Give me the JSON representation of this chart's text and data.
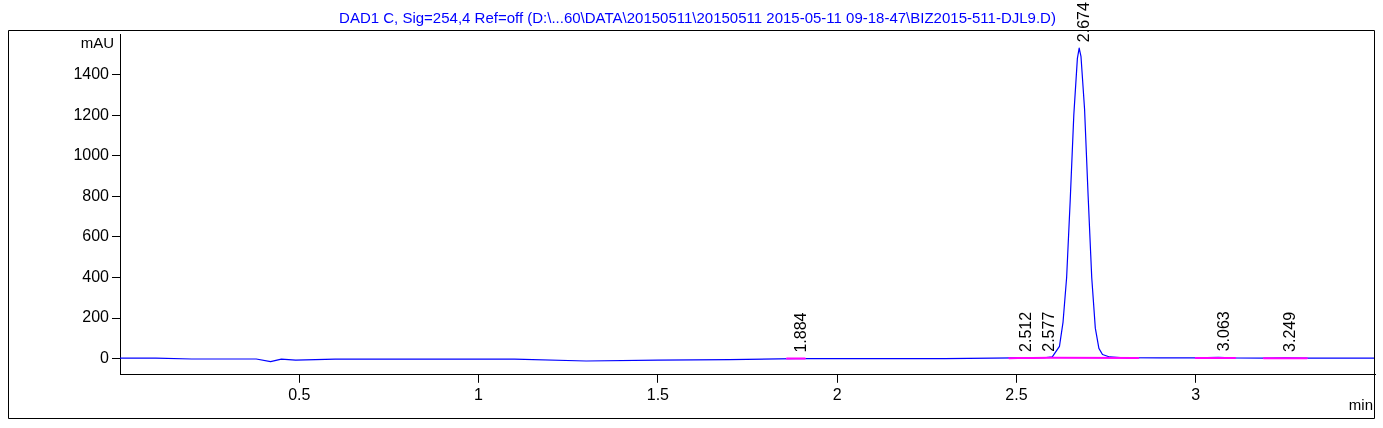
{
  "chart_data": {
    "type": "line",
    "title": "DAD1 C, Sig=254,4 Ref=off (D:\\...60\\DATA\\20150511\\20150511 2015-05-11 09-18-47\\BIZ2015-511-DJL9.D)",
    "xlabel": "min",
    "ylabel": "mAU",
    "xlim": [
      0,
      3.5
    ],
    "ylim": [
      -80,
      1600
    ],
    "xticks": [
      0.5,
      1,
      1.5,
      2,
      2.5,
      3
    ],
    "yticks": [
      0,
      200,
      400,
      600,
      800,
      1000,
      1200,
      1400
    ],
    "grid": false,
    "legend": false,
    "marker": "none",
    "line_style": "solid",
    "series": [
      {
        "color": "#0000ff",
        "x": [
          0,
          0.1,
          0.2,
          0.3,
          0.38,
          0.42,
          0.45,
          0.49,
          0.6,
          0.8,
          1.0,
          1.1,
          1.3,
          1.5,
          1.7,
          1.884,
          2.0,
          2.3,
          2.5,
          2.577,
          2.6,
          2.62,
          2.63,
          2.64,
          2.65,
          2.66,
          2.67,
          2.675,
          2.68,
          2.69,
          2.7,
          2.71,
          2.72,
          2.73,
          2.74,
          2.76,
          2.8,
          2.9,
          3.0,
          3.063,
          3.1,
          3.2,
          3.249,
          3.3,
          3.5
        ],
        "values": [
          2,
          2,
          -2,
          -2,
          -2,
          -15,
          -3,
          -8,
          -3,
          -3,
          -3,
          -3,
          -12,
          -8,
          -5,
          0,
          0,
          0,
          3,
          4,
          8,
          60,
          180,
          400,
          780,
          1200,
          1480,
          1530,
          1490,
          1230,
          800,
          400,
          150,
          50,
          20,
          8,
          4,
          3,
          3,
          6,
          3,
          2,
          3,
          2,
          2
        ]
      },
      {
        "color": "#ff00ff",
        "x": [
          1.86,
          1.91,
          null,
          2.48,
          2.545,
          2.595,
          2.84,
          null,
          3.0,
          3.11,
          null,
          3.19,
          3.31
        ],
        "values": [
          0,
          0,
          null,
          2,
          3,
          4,
          3,
          null,
          3,
          3,
          null,
          2,
          2
        ]
      }
    ],
    "annotations": [
      {
        "text": "1.884",
        "x": 1.884,
        "y": 0
      },
      {
        "text": "2.512",
        "x": 2.512,
        "y": 3
      },
      {
        "text": "2.577",
        "x": 2.577,
        "y": 4
      },
      {
        "text": "2.674",
        "x": 2.674,
        "y": 1530
      },
      {
        "text": "3.063",
        "x": 3.063,
        "y": 6
      },
      {
        "text": "3.249",
        "x": 3.249,
        "y": 3
      }
    ]
  }
}
